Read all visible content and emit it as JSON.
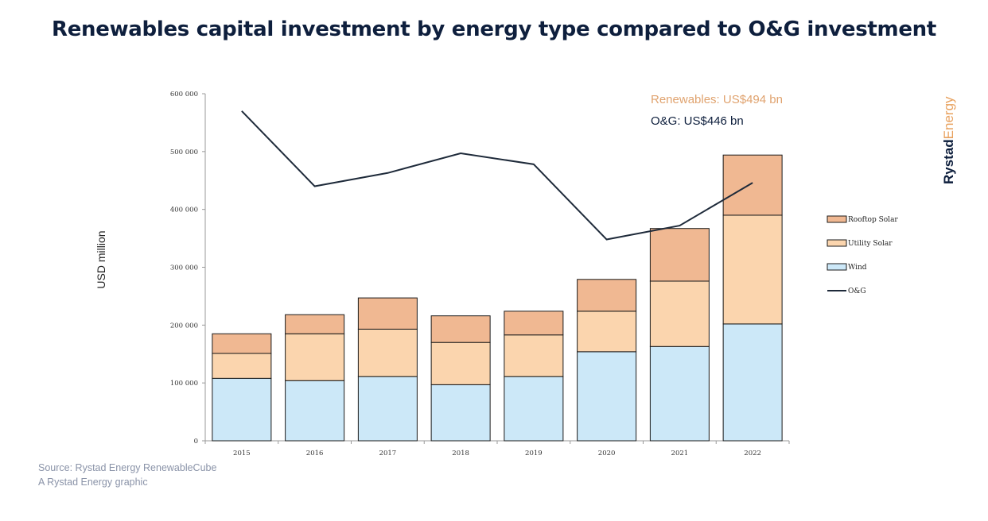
{
  "title": "Renewables capital investment by energy type compared to O&G investment",
  "brand": {
    "part1": "Rystad",
    "part2": "Energy"
  },
  "source": {
    "line1": "Source: Rystad Energy RenewableCube",
    "line2": "A Rystad Energy graphic"
  },
  "annotations": {
    "renewables": "Renewables: US$494 bn",
    "og": "O&G: US$446 bn"
  },
  "colors": {
    "rooftop_solar": "#f0b892",
    "utility_solar": "#fbd5ae",
    "wind": "#cce8f8",
    "og_line": "#1e2a3a",
    "renewables_text": "#e0a36f",
    "og_text": "#0e1f3d",
    "brand_dark": "#0e1f3d",
    "brand_orange": "#e8a15e"
  },
  "chart_data": {
    "type": "bar",
    "stacked": true,
    "title": "Renewables capital investment by energy type compared to O&G investment",
    "xlabel": "",
    "ylabel": "USD million",
    "ylim": [
      0,
      600000
    ],
    "yticks": [
      "0",
      "100 000",
      "200 000",
      "300 000",
      "400 000",
      "500 000",
      "600 000"
    ],
    "categories": [
      "2015",
      "2016",
      "2017",
      "2018",
      "2019",
      "2020",
      "2021",
      "2022"
    ],
    "series": [
      {
        "name": "Wind",
        "values": [
          108000,
          104000,
          111000,
          97000,
          111000,
          154000,
          163000,
          202000
        ]
      },
      {
        "name": "Utility Solar",
        "values": [
          43000,
          81000,
          82000,
          73000,
          72000,
          70000,
          113000,
          188000
        ]
      },
      {
        "name": "Rooftop Solar",
        "values": [
          34000,
          33000,
          54000,
          46000,
          41000,
          55000,
          91000,
          104000
        ]
      }
    ],
    "line_series": {
      "name": "O&G",
      "values": [
        570000,
        440000,
        463000,
        497000,
        478000,
        348000,
        372000,
        446000
      ]
    },
    "legend": [
      "Rooftop Solar",
      "Utility Solar",
      "Wind",
      "O&G"
    ],
    "legend_position": "right",
    "grid": false
  }
}
